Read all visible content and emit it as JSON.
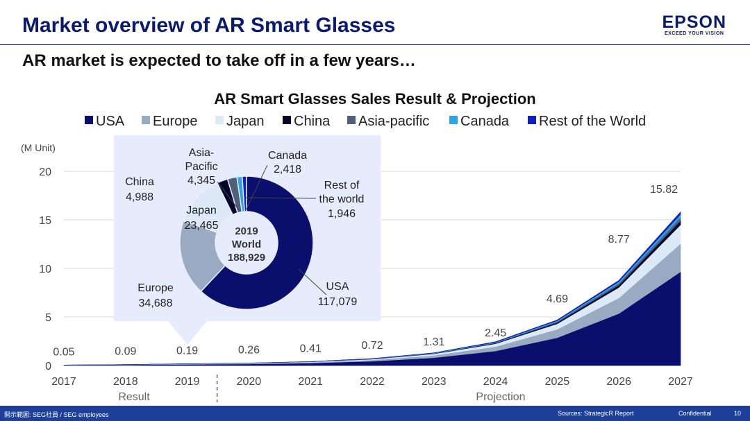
{
  "header": {
    "title": "Market overview of AR Smart Glasses",
    "subtitle": "AR market is expected to take off in a few years…",
    "logo_brand": "EPSON",
    "logo_tagline": "EXCEED YOUR VISION"
  },
  "footer": {
    "disclosure": "開示範囲: SEG社員 / SEG employees",
    "sources": "Sources: StrategicR Report",
    "confidential": "Confidential",
    "page": "10"
  },
  "colors": {
    "USA": "#0a0f6e",
    "Europe": "#9aaac2",
    "Japan": "#dde9f6",
    "China": "#07072e",
    "Asia-pacific": "#4f607a",
    "Canada": "#2aa6e8",
    "Rest of the World": "#1020c0",
    "title": "#0a1a6e",
    "inset_bg": "#e6ecfb",
    "footer": "#1c3f99"
  },
  "chart_data": [
    {
      "type": "area",
      "title": "AR Smart Glasses Sales Result & Projection",
      "ylabel": "(M Unit)",
      "ylim": [
        0,
        20
      ],
      "yticks": [
        0,
        5,
        10,
        15,
        20
      ],
      "grid": true,
      "legend": "top",
      "x": [
        "2017",
        "2018",
        "2019",
        "2020",
        "2021",
        "2022",
        "2023",
        "2024",
        "2025",
        "2026",
        "2027"
      ],
      "totals": [
        0.05,
        0.09,
        0.19,
        0.26,
        0.41,
        0.72,
        1.31,
        2.45,
        4.69,
        8.77,
        15.82
      ],
      "total_labels": [
        "0.05",
        "0.09",
        "0.19",
        "0.26",
        "0.41",
        "0.72",
        "1.31",
        "2.45",
        "4.69",
        "8.77",
        "15.82"
      ],
      "series": [
        {
          "name": "USA",
          "values": [
            0.03,
            0.06,
            0.12,
            0.16,
            0.25,
            0.44,
            0.8,
            1.49,
            2.86,
            5.35,
            9.65
          ]
        },
        {
          "name": "Europe",
          "values": [
            0.01,
            0.02,
            0.03,
            0.05,
            0.08,
            0.13,
            0.24,
            0.45,
            0.86,
            1.61,
            2.9
          ]
        },
        {
          "name": "Japan",
          "values": [
            0.01,
            0.01,
            0.02,
            0.03,
            0.05,
            0.09,
            0.16,
            0.3,
            0.58,
            1.08,
            1.94
          ]
        },
        {
          "name": "China",
          "values": [
            0.0,
            0.0,
            0.01,
            0.01,
            0.01,
            0.02,
            0.03,
            0.06,
            0.12,
            0.23,
            0.42
          ]
        },
        {
          "name": "Asia-pacific",
          "values": [
            0.0,
            0.0,
            0.0,
            0.01,
            0.01,
            0.02,
            0.03,
            0.05,
            0.11,
            0.2,
            0.36
          ]
        },
        {
          "name": "Canada",
          "values": [
            0.0,
            0.0,
            0.0,
            0.0,
            0.01,
            0.01,
            0.03,
            0.05,
            0.09,
            0.17,
            0.3
          ]
        },
        {
          "name": "Rest of the World",
          "values": [
            0.0,
            0.0,
            0.0,
            0.0,
            0.0,
            0.01,
            0.02,
            0.05,
            0.07,
            0.13,
            0.25
          ]
        }
      ],
      "period_labels": {
        "result": "Result",
        "projection": "Projection"
      }
    },
    {
      "type": "pie",
      "donut": true,
      "center_lines": [
        "2019",
        "World",
        "188,929"
      ],
      "slices": [
        {
          "name": "USA",
          "value": 117079,
          "label": "USA",
          "value_label": "117,079"
        },
        {
          "name": "Europe",
          "value": 34688,
          "label": "Europe",
          "value_label": "34,688"
        },
        {
          "name": "Japan",
          "value": 23465,
          "label": "Japan",
          "value_label": "23,465"
        },
        {
          "name": "China",
          "value": 4988,
          "label": "China",
          "value_label": "4,988"
        },
        {
          "name": "Asia-pacific",
          "value": 4345,
          "label": "Asia-\nPacific",
          "value_label": "4,345"
        },
        {
          "name": "Canada",
          "value": 2418,
          "label": "Canada",
          "value_label": "2,418"
        },
        {
          "name": "Rest of the World",
          "value": 1946,
          "label": "Rest of\nthe world",
          "value_label": "1,946"
        }
      ]
    }
  ]
}
